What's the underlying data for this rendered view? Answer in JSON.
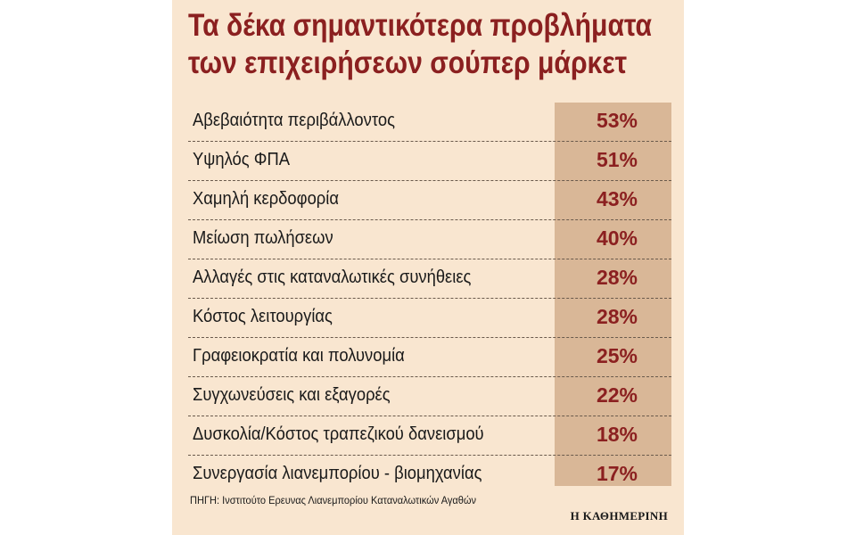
{
  "title_lines": [
    "Τα δέκα σημαντικότερα προβλήματα",
    "των επιχειρήσεων σούπερ μάρκετ"
  ],
  "source": "ΠΗΓΗ: Ινστιτούτο Ερευνας Λιανεμπορίου Καταναλωτικών Αγαθών",
  "brand": "Η ΚΑΘΗΜΕΡΙΝΗ",
  "colors": {
    "background": "#f9e6d0",
    "value_column": "#d9b797",
    "accent": "#8b2020"
  },
  "chart_data": {
    "type": "table",
    "title": "Τα δέκα σημαντικότερα προβλήματα των επιχειρήσεων σούπερ μάρκετ",
    "categories": [
      "Αβεβαιότητα περιβάλλοντος",
      "Υψηλός ΦΠΑ",
      "Χαμηλή κερδοφορία",
      "Μείωση πωλήσεων",
      "Αλλαγές στις καταναλωτικές συνήθειες",
      "Κόστος λειτουργίας",
      "Γραφειοκρατία και πολυνομία",
      "Συγχωνεύσεις και εξαγορές",
      "Δυσκολία/Κόστος τραπεζικού δανεισμού",
      "Συνεργασία λιανεμπορίου - βιομηχανίας"
    ],
    "values": [
      53,
      51,
      43,
      40,
      28,
      28,
      25,
      22,
      18,
      17
    ],
    "value_labels": [
      "53%",
      "51%",
      "43%",
      "40%",
      "28%",
      "28%",
      "25%",
      "22%",
      "18%",
      "17%"
    ]
  }
}
